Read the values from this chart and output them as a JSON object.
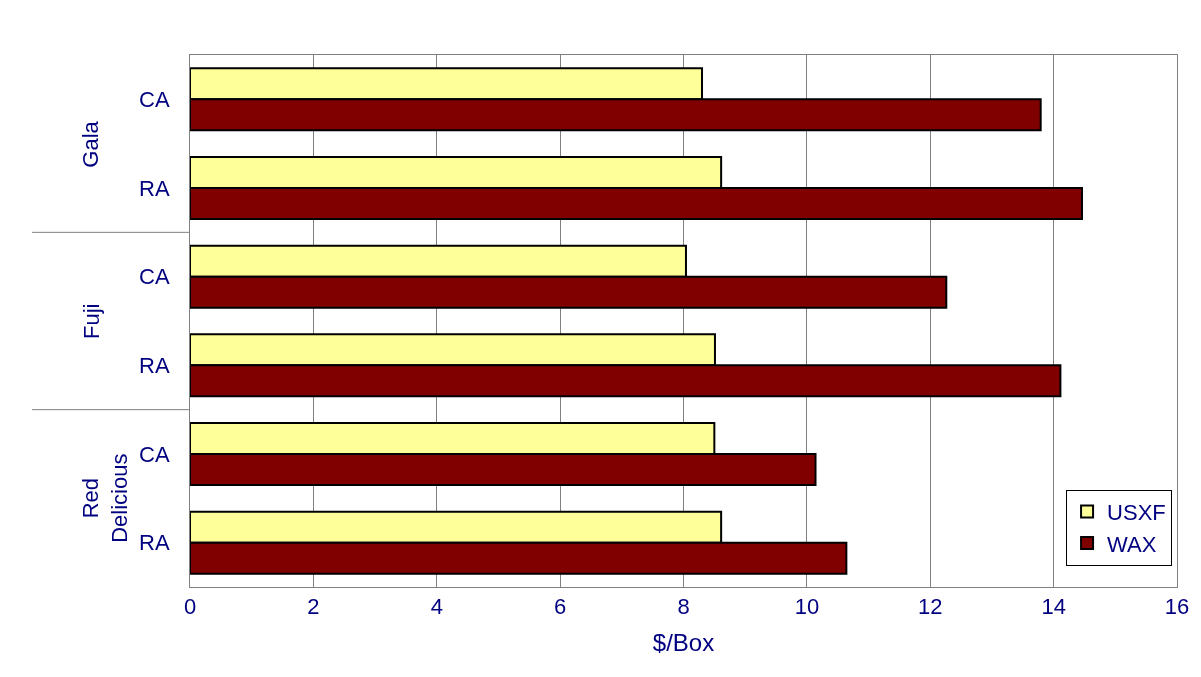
{
  "chart_data": {
    "type": "bar",
    "orientation": "horizontal",
    "xlabel": "$/Box",
    "categories": [
      "CA",
      "RA",
      "CA",
      "RA",
      "CA",
      "RA"
    ],
    "annotations": [
      "Gala",
      "Fuji",
      "Red Delicious"
    ],
    "series": [
      {
        "name": "USXF",
        "color": "#ffff99",
        "values": [
          8.3,
          8.61,
          8.04,
          8.51,
          8.5,
          8.61
        ]
      },
      {
        "name": "WAX",
        "color": "#800000",
        "values": [
          13.79,
          14.46,
          12.26,
          14.11,
          10.14,
          10.64
        ]
      }
    ],
    "xlim": [
      0,
      16
    ],
    "xticks": [
      0,
      2,
      4,
      6,
      8,
      10,
      12,
      14,
      16
    ],
    "grid": "x",
    "legend": "bottom right"
  }
}
